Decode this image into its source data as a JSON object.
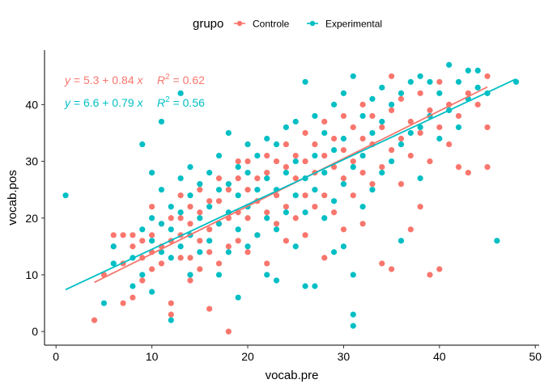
{
  "chart_data": {
    "type": "scatter",
    "xlabel": "vocab.pre",
    "ylabel": "vocab.pos",
    "xlim": [
      -1.2,
      50.4
    ],
    "ylim": [
      -2.4,
      49.6
    ],
    "x_ticks": [
      0,
      10,
      20,
      30,
      40,
      50
    ],
    "y_ticks": [
      0,
      10,
      20,
      30,
      40
    ],
    "grid": false,
    "legend": {
      "title": "grupo",
      "placement": "top",
      "entries": [
        "Controle",
        "Experimental"
      ]
    },
    "series": [
      {
        "name": "Controle",
        "color": "#F8766D",
        "regression": {
          "intercept": 5.3,
          "slope": 0.84,
          "x_range": [
            4,
            45
          ]
        },
        "equation_label": {
          "text": "y = 5.3 + 0.84 x",
          "r2_text": "R² = 0.62",
          "eq_parts": [
            "y",
            " = 5.3 + 0.84 ",
            "x"
          ],
          "r2_parts": [
            "R",
            "2",
            " = 0.62"
          ]
        },
        "points": [
          [
            4,
            2
          ],
          [
            5,
            10
          ],
          [
            6,
            15
          ],
          [
            6,
            17
          ],
          [
            7,
            5
          ],
          [
            7,
            12
          ],
          [
            7,
            17
          ],
          [
            8,
            6
          ],
          [
            8,
            15
          ],
          [
            8,
            17
          ],
          [
            9,
            9
          ],
          [
            9,
            13
          ],
          [
            9,
            16
          ],
          [
            10,
            11
          ],
          [
            10,
            14
          ],
          [
            10,
            17
          ],
          [
            10,
            22
          ],
          [
            11,
            12
          ],
          [
            11,
            15
          ],
          [
            11,
            19
          ],
          [
            12,
            3
          ],
          [
            12,
            5
          ],
          [
            12,
            16
          ],
          [
            12,
            20
          ],
          [
            13,
            13
          ],
          [
            13,
            17
          ],
          [
            13,
            20
          ],
          [
            13,
            24
          ],
          [
            14,
            9
          ],
          [
            14,
            13
          ],
          [
            14,
            19
          ],
          [
            14,
            22
          ],
          [
            15,
            11
          ],
          [
            15,
            16
          ],
          [
            15,
            21
          ],
          [
            15,
            25
          ],
          [
            16,
            4
          ],
          [
            16,
            14
          ],
          [
            16,
            18
          ],
          [
            16,
            23
          ],
          [
            17,
            12
          ],
          [
            17,
            19
          ],
          [
            17,
            23
          ],
          [
            17,
            27
          ],
          [
            18,
            0
          ],
          [
            18,
            15
          ],
          [
            18,
            20
          ],
          [
            18,
            25
          ],
          [
            19,
            16
          ],
          [
            19,
            21
          ],
          [
            19,
            27
          ],
          [
            19,
            30
          ],
          [
            20,
            14
          ],
          [
            20,
            20
          ],
          [
            20,
            25
          ],
          [
            20,
            30
          ],
          [
            21,
            17
          ],
          [
            21,
            23
          ],
          [
            21,
            27
          ],
          [
            22,
            12
          ],
          [
            22,
            21
          ],
          [
            22,
            28
          ],
          [
            22,
            31
          ],
          [
            23,
            19
          ],
          [
            23,
            24
          ],
          [
            23,
            30
          ],
          [
            24,
            16
          ],
          [
            24,
            22
          ],
          [
            24,
            29
          ],
          [
            24,
            33
          ],
          [
            25,
            20
          ],
          [
            25,
            27
          ],
          [
            25,
            31
          ],
          [
            26,
            17
          ],
          [
            26,
            24
          ],
          [
            26,
            30
          ],
          [
            26,
            35
          ],
          [
            27,
            22
          ],
          [
            27,
            28
          ],
          [
            27,
            33
          ],
          [
            28,
            13
          ],
          [
            28,
            24
          ],
          [
            28,
            31
          ],
          [
            28,
            37
          ],
          [
            29,
            21
          ],
          [
            29,
            29
          ],
          [
            29,
            34
          ],
          [
            30,
            18
          ],
          [
            30,
            27
          ],
          [
            30,
            32
          ],
          [
            30,
            38
          ],
          [
            31,
            24
          ],
          [
            31,
            30
          ],
          [
            31,
            36
          ],
          [
            32,
            19
          ],
          [
            32,
            28
          ],
          [
            32,
            34
          ],
          [
            32,
            40
          ],
          [
            33,
            26
          ],
          [
            33,
            33
          ],
          [
            33,
            38
          ],
          [
            34,
            12
          ],
          [
            34,
            29
          ],
          [
            34,
            36
          ],
          [
            35,
            11
          ],
          [
            35,
            32
          ],
          [
            35,
            39
          ],
          [
            35,
            45
          ],
          [
            36,
            26
          ],
          [
            36,
            34
          ],
          [
            36,
            41
          ],
          [
            37,
            18
          ],
          [
            37,
            31
          ],
          [
            37,
            37
          ],
          [
            38,
            22
          ],
          [
            38,
            35
          ],
          [
            38,
            42
          ],
          [
            39,
            10
          ],
          [
            39,
            30
          ],
          [
            39,
            39
          ],
          [
            40,
            11
          ],
          [
            40,
            36
          ],
          [
            40,
            44
          ],
          [
            41,
            33
          ],
          [
            41,
            40
          ],
          [
            42,
            29
          ],
          [
            42,
            38
          ],
          [
            43,
            28
          ],
          [
            43,
            42
          ],
          [
            44,
            40
          ],
          [
            45,
            36
          ],
          [
            45,
            29
          ],
          [
            45,
            45
          ]
        ]
      },
      {
        "name": "Experimental",
        "color": "#00BFC4",
        "regression": {
          "intercept": 6.6,
          "slope": 0.79,
          "x_range": [
            1,
            48
          ]
        },
        "equation_label": {
          "text": "y = 6.6 + 0.79 x",
          "r2_text": "R² = 0.56",
          "eq_parts": [
            "y",
            " = 6.6 + 0.79 ",
            "x"
          ],
          "r2_parts": [
            "R",
            "2",
            " = 0.56"
          ]
        },
        "points": [
          [
            1,
            24
          ],
          [
            5,
            5
          ],
          [
            6,
            12
          ],
          [
            6,
            15
          ],
          [
            8,
            8
          ],
          [
            8,
            13
          ],
          [
            9,
            10
          ],
          [
            9,
            18
          ],
          [
            9,
            33
          ],
          [
            10,
            7
          ],
          [
            10,
            16
          ],
          [
            10,
            20
          ],
          [
            10,
            28
          ],
          [
            11,
            14
          ],
          [
            11,
            19
          ],
          [
            11,
            25
          ],
          [
            11,
            37
          ],
          [
            12,
            2
          ],
          [
            12,
            13
          ],
          [
            12,
            18
          ],
          [
            12,
            22
          ],
          [
            13,
            42
          ],
          [
            13,
            15
          ],
          [
            13,
            21
          ],
          [
            13,
            27
          ],
          [
            14,
            10
          ],
          [
            14,
            17
          ],
          [
            14,
            24
          ],
          [
            14,
            29
          ],
          [
            15,
            14
          ],
          [
            15,
            20
          ],
          [
            15,
            26
          ],
          [
            16,
            16
          ],
          [
            16,
            22
          ],
          [
            16,
            28
          ],
          [
            17,
            10
          ],
          [
            17,
            19
          ],
          [
            17,
            25
          ],
          [
            17,
            31
          ],
          [
            18,
            14
          ],
          [
            18,
            21
          ],
          [
            18,
            26
          ],
          [
            18,
            35
          ],
          [
            19,
            6
          ],
          [
            19,
            18
          ],
          [
            19,
            24
          ],
          [
            19,
            29
          ],
          [
            20,
            15
          ],
          [
            20,
            22
          ],
          [
            20,
            28
          ],
          [
            20,
            33
          ],
          [
            21,
            17
          ],
          [
            21,
            25
          ],
          [
            21,
            31
          ],
          [
            22,
            10
          ],
          [
            22,
            20
          ],
          [
            22,
            27
          ],
          [
            22,
            34
          ],
          [
            23,
            9
          ],
          [
            23,
            18
          ],
          [
            23,
            25
          ],
          [
            23,
            33
          ],
          [
            24,
            21
          ],
          [
            24,
            28
          ],
          [
            24,
            36
          ],
          [
            25,
            15
          ],
          [
            25,
            24
          ],
          [
            25,
            30
          ],
          [
            25,
            37
          ],
          [
            26,
            8
          ],
          [
            26,
            21
          ],
          [
            26,
            27
          ],
          [
            26,
            44
          ],
          [
            27,
            8
          ],
          [
            27,
            25
          ],
          [
            27,
            31
          ],
          [
            27,
            38
          ],
          [
            28,
            20
          ],
          [
            28,
            28
          ],
          [
            28,
            35
          ],
          [
            29,
            14
          ],
          [
            29,
            23
          ],
          [
            29,
            32
          ],
          [
            29,
            40
          ],
          [
            30,
            15
          ],
          [
            30,
            26
          ],
          [
            30,
            34
          ],
          [
            30,
            42
          ],
          [
            31,
            1
          ],
          [
            31,
            3
          ],
          [
            31,
            10
          ],
          [
            31,
            29
          ],
          [
            31,
            45
          ],
          [
            32,
            22
          ],
          [
            32,
            31
          ],
          [
            32,
            38
          ],
          [
            33,
            25
          ],
          [
            33,
            35
          ],
          [
            33,
            41
          ],
          [
            34,
            28
          ],
          [
            34,
            37
          ],
          [
            34,
            43
          ],
          [
            35,
            30
          ],
          [
            35,
            40
          ],
          [
            36,
            33
          ],
          [
            36,
            42
          ],
          [
            36,
            16
          ],
          [
            37,
            35
          ],
          [
            37,
            44
          ],
          [
            38,
            27
          ],
          [
            38,
            36
          ],
          [
            38,
            45
          ],
          [
            39,
            38
          ],
          [
            39,
            44
          ],
          [
            40,
            34
          ],
          [
            40,
            42
          ],
          [
            41,
            39
          ],
          [
            41,
            47
          ],
          [
            42,
            36
          ],
          [
            42,
            44
          ],
          [
            43,
            41
          ],
          [
            43,
            46
          ],
          [
            44,
            43
          ],
          [
            44,
            46
          ],
          [
            45,
            42
          ],
          [
            46,
            16
          ],
          [
            48,
            44
          ]
        ]
      }
    ]
  }
}
